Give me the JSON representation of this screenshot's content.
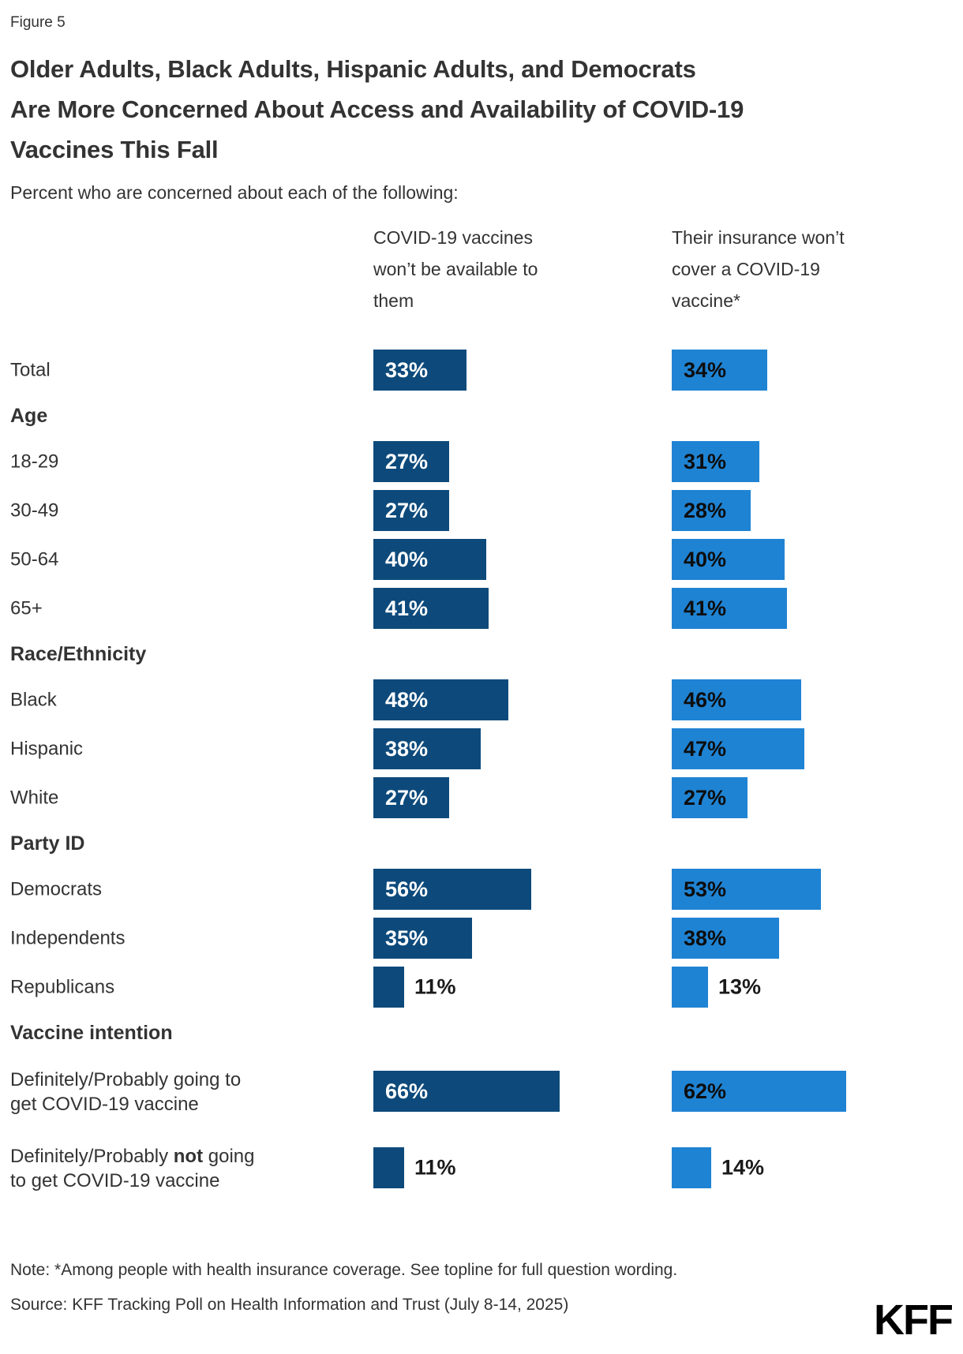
{
  "figure_label": "Figure 5",
  "title_lines": [
    "Older Adults, Black Adults, Hispanic Adults, and Democrats",
    "Are More Concerned About Access and Availability of COVID-19",
    "Vaccines This Fall"
  ],
  "subtitle": "Percent who are concerned about each of the following:",
  "columns": [
    {
      "header_lines": [
        "COVID-19 vaccines",
        "won’t be available to",
        "them"
      ],
      "color": "#0D4A7B"
    },
    {
      "header_lines": [
        "Their insurance won’t",
        "cover a COVID-19",
        "vaccine*"
      ],
      "color": "#1F83D3"
    }
  ],
  "chart_data": {
    "type": "bar",
    "orientation": "horizontal",
    "unit": "percent",
    "value_range": [
      0,
      100
    ],
    "grid": false,
    "legend_position": "column-headers",
    "series": [
      {
        "name": "COVID-19 vaccines won’t be available to them",
        "color": "#0D4A7B"
      },
      {
        "name": "Their insurance won’t cover a COVID-19 vaccine*",
        "color": "#1F83D3"
      }
    ],
    "rows": [
      {
        "type": "row",
        "label": "Total",
        "values": [
          33,
          34
        ],
        "value_labels": [
          "33%",
          "34%"
        ]
      },
      {
        "type": "section",
        "label": "Age"
      },
      {
        "type": "row",
        "label": "18-29",
        "values": [
          27,
          31
        ],
        "value_labels": [
          "27%",
          "31%"
        ]
      },
      {
        "type": "row",
        "label": "30-49",
        "values": [
          27,
          28
        ],
        "value_labels": [
          "27%",
          "28%"
        ]
      },
      {
        "type": "row",
        "label": "50-64",
        "values": [
          40,
          40
        ],
        "value_labels": [
          "40%",
          "40%"
        ]
      },
      {
        "type": "row",
        "label": "65+",
        "values": [
          41,
          41
        ],
        "value_labels": [
          "41%",
          "41%"
        ]
      },
      {
        "type": "section",
        "label": "Race/Ethnicity"
      },
      {
        "type": "row",
        "label": "Black",
        "values": [
          48,
          46
        ],
        "value_labels": [
          "48%",
          "46%"
        ]
      },
      {
        "type": "row",
        "label": "Hispanic",
        "values": [
          38,
          47
        ],
        "value_labels": [
          "38%",
          "47%"
        ]
      },
      {
        "type": "row",
        "label": "White",
        "values": [
          27,
          27
        ],
        "value_labels": [
          "27%",
          "27%"
        ]
      },
      {
        "type": "section",
        "label": "Party ID"
      },
      {
        "type": "row",
        "label": "Democrats",
        "values": [
          56,
          53
        ],
        "value_labels": [
          "56%",
          "53%"
        ]
      },
      {
        "type": "row",
        "label": "Independents",
        "values": [
          35,
          38
        ],
        "value_labels": [
          "35%",
          "38%"
        ]
      },
      {
        "type": "row",
        "label": "Republicans",
        "values": [
          11,
          13
        ],
        "value_labels": [
          "11%",
          "13%"
        ],
        "labels_outside": true
      },
      {
        "type": "section",
        "label": "Vaccine intention"
      },
      {
        "type": "row",
        "label": "Definitely/Probably going to\nget COVID-19 vaccine",
        "values": [
          66,
          62
        ],
        "value_labels": [
          "66%",
          "62%"
        ]
      },
      {
        "type": "row",
        "label_parts": {
          "pre": "Definitely/Probably ",
          "bold": "not",
          "post": " going\nto get COVID-19 vaccine"
        },
        "values": [
          11,
          14
        ],
        "value_labels": [
          "11%",
          "14%"
        ],
        "labels_outside": true
      }
    ]
  },
  "note": "Note: *Among people with health insurance coverage. See topline for full question wording.",
  "source": "Source: KFF Tracking Poll on Health Information and Trust (July 8-14, 2025)",
  "logo_text": "KFF"
}
